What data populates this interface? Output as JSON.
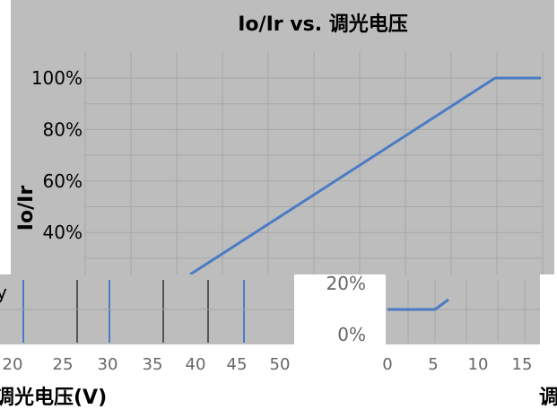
{
  "chart_data": [
    {
      "type": "line",
      "title": "Io/Ir vs. 调光电压",
      "xlabel": "",
      "ylabel": "Io/Ir",
      "y_ticks": [
        "0%",
        "20%",
        "40%",
        "60%",
        "80%",
        "100%"
      ],
      "ylim": [
        0,
        1.1
      ],
      "xlim": [
        -1,
        18
      ],
      "x_ticks": [
        "0",
        "5",
        "10",
        "15"
      ],
      "grid": true,
      "colors": {
        "background": "#bdbdbd",
        "grid": "#a8a8a8",
        "line": "#4a7cc4"
      },
      "series": [
        {
          "x": [
            0,
            5,
            12,
            17.5
          ],
          "y": [
            0.1,
            0.1,
            1.0,
            1.0
          ]
        }
      ]
    },
    {
      "type": "line",
      "title": "",
      "xlabel": "调光电压(V)",
      "ylabel": "",
      "x_ticks": [
        "20",
        "25",
        "30",
        "35",
        "40",
        "45",
        "50"
      ],
      "xlim": [
        20,
        52
      ],
      "grid": true,
      "colors": {
        "background": "#bdbdbd",
        "grid": "#a8a8a8",
        "line": "#4a7cc4"
      }
    }
  ],
  "fragments": {
    "left_edge_y": "y",
    "bottom_right_char": "调"
  }
}
